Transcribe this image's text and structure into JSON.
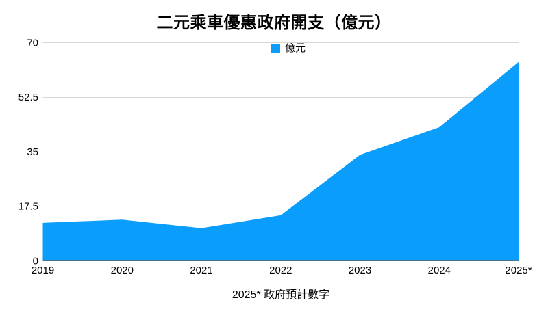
{
  "title": "二元乘車優惠政府開支（億元）",
  "legend": {
    "label": "億元",
    "swatch_color": "#0a9dfc"
  },
  "footnote": "2025* 政府預計數字",
  "chart_data": {
    "type": "area",
    "title": "二元乘車優惠政府開支（億元）",
    "categories": [
      "2019",
      "2020",
      "2021",
      "2022",
      "2023",
      "2024",
      "2025*"
    ],
    "series": [
      {
        "name": "億元",
        "values": [
          12.1,
          13.1,
          10.4,
          14.5,
          33.9,
          42.8,
          63.7
        ]
      }
    ],
    "xlabel": "",
    "ylabel": "",
    "ylim": [
      0,
      70
    ],
    "yticks": [
      0,
      17.5,
      35,
      52.5,
      70
    ],
    "ytick_labels": [
      "0",
      "17.5",
      "35",
      "52.5",
      "70"
    ],
    "grid": "horizontal",
    "legend_position": "top-center",
    "area_color": "#0a9dfc",
    "gridline_color": "#d8d8d8",
    "axis_line_color": "#45748f",
    "text_color": "#000000",
    "footnote": "2025* 政府預計數字"
  }
}
